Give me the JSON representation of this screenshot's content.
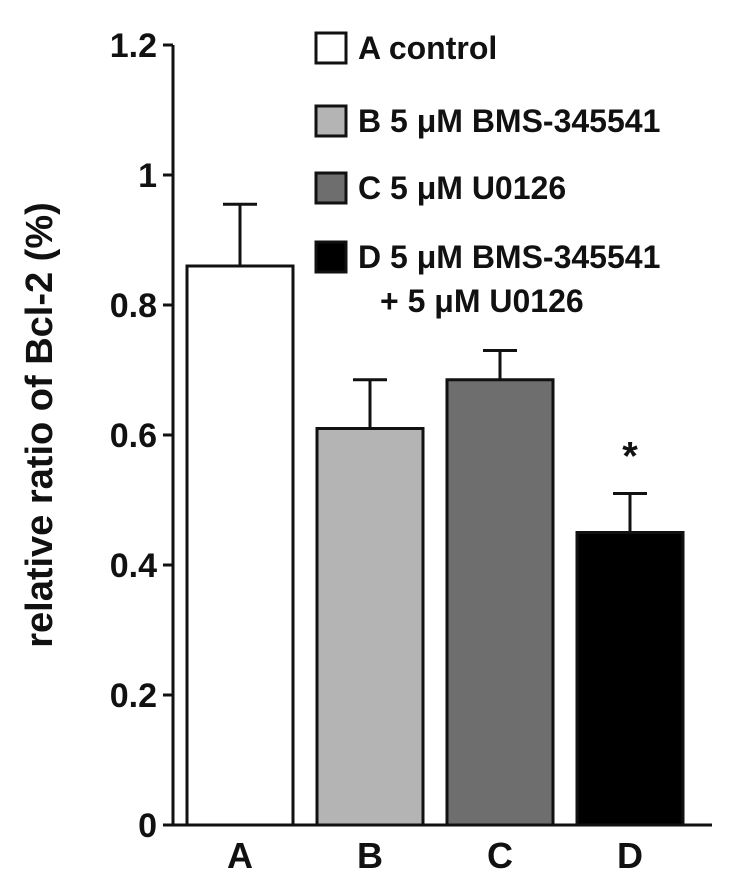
{
  "chart_data": {
    "type": "bar",
    "ylabel": "relative ratio of Bcl-2 (%)",
    "xlabel": "",
    "ylim": [
      0,
      1.2
    ],
    "yticks": [
      "0",
      "0.2",
      "0.4",
      "0.6",
      "0.8",
      "1",
      "1.2"
    ],
    "categories": [
      "A",
      "B",
      "C",
      "D"
    ],
    "values": [
      0.86,
      0.61,
      0.685,
      0.45
    ],
    "errors": [
      0.095,
      0.075,
      0.045,
      0.06
    ],
    "colors": [
      "#ffffff",
      "#b4b4b4",
      "#6e6e6e",
      "#000000"
    ],
    "annotations": [
      "",
      "",
      "",
      "*"
    ],
    "legend_placement": "top-right",
    "legend": [
      {
        "lines": [
          "A control"
        ]
      },
      {
        "lines": [
          "B 5 μM BMS-345541"
        ]
      },
      {
        "lines": [
          "C 5 μM U0126"
        ]
      },
      {
        "lines": [
          "D 5 μM BMS-345541",
          "+ 5 μM U0126"
        ]
      }
    ],
    "grid": false
  }
}
